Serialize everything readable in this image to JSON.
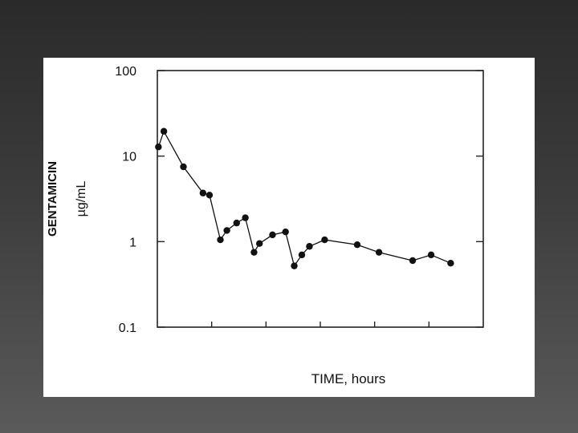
{
  "chart_data": {
    "type": "line",
    "title": "",
    "xlabel": "TIME, hours",
    "ylabel": "GENTAMICIN",
    "ylabel_unit": "µg/mL",
    "yscale": "log",
    "ylim": [
      0.1,
      100
    ],
    "yticks": [
      {
        "value": 100,
        "label": "100"
      },
      {
        "value": 10,
        "label": "10"
      },
      {
        "value": 1,
        "label": "1"
      },
      {
        "value": 0.1,
        "label": "0.1"
      }
    ],
    "xlim": [
      0,
      30
    ],
    "xticks": [
      5,
      10,
      15,
      20,
      25
    ],
    "x_tick_labels_shown": false,
    "grid": false,
    "series": [
      {
        "points": [
          {
            "x": 0.1,
            "y": 12.8
          },
          {
            "x": 0.6,
            "y": 19.5
          },
          {
            "x": 2.4,
            "y": 7.5
          },
          {
            "x": 4.2,
            "y": 3.7
          },
          {
            "x": 4.8,
            "y": 3.5
          },
          {
            "x": 5.8,
            "y": 1.05
          },
          {
            "x": 6.4,
            "y": 1.35
          },
          {
            "x": 7.3,
            "y": 1.65
          },
          {
            "x": 8.1,
            "y": 1.9
          },
          {
            "x": 8.9,
            "y": 0.75
          },
          {
            "x": 9.4,
            "y": 0.95
          },
          {
            "x": 10.6,
            "y": 1.2
          },
          {
            "x": 11.8,
            "y": 1.3
          },
          {
            "x": 12.6,
            "y": 0.52
          },
          {
            "x": 13.3,
            "y": 0.7
          },
          {
            "x": 14.0,
            "y": 0.88
          },
          {
            "x": 15.4,
            "y": 1.05
          },
          {
            "x": 18.4,
            "y": 0.92
          },
          {
            "x": 20.4,
            "y": 0.75
          },
          {
            "x": 23.5,
            "y": 0.6
          },
          {
            "x": 25.2,
            "y": 0.7
          },
          {
            "x": 27.0,
            "y": 0.56
          }
        ]
      }
    ]
  }
}
